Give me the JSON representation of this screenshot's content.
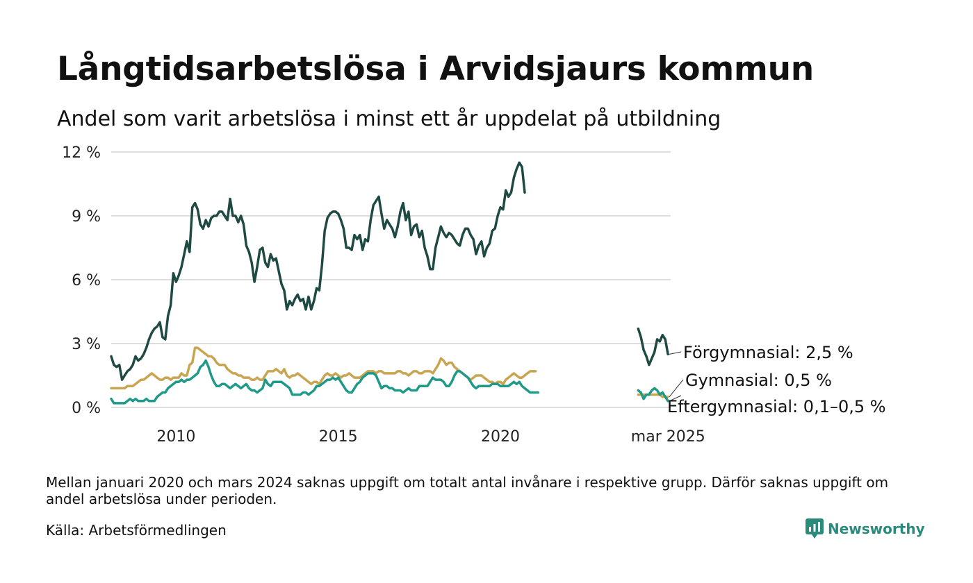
{
  "header": {
    "title": "Långtidsarbetslösa i Arvidsjaurs kommun",
    "subtitle": "Andel som varit arbetslösa i minst ett år uppdelat på utbildning"
  },
  "footer": {
    "note": "Mellan januari 2020 och mars 2024 saknas uppgift om totalt antal invånare i respektive grupp. Därför saknas uppgift om andel arbetslösa under perioden.",
    "source": "Källa: Arbetsförmedlingen",
    "brand": "Newsworthy",
    "brand_icon": "newsworthy-logo-icon",
    "brand_color": "#2a8a7c"
  },
  "chart_data": {
    "type": "line",
    "title": "Långtidsarbetslösa i Arvidsjaurs kommun",
    "subtitle": "Andel som varit arbetslösa i minst ett år uppdelat på utbildning",
    "y_unit": "%",
    "ylim": [
      0,
      12
    ],
    "yticks": [
      0,
      3,
      6,
      9,
      12
    ],
    "ytick_labels": [
      "0 %",
      "3 %",
      "6 %",
      "9 %",
      "12 %"
    ],
    "xlim": [
      2008.0,
      2025.25
    ],
    "xticks": [
      2010,
      2015,
      2020,
      2025.17
    ],
    "xtick_labels": [
      "2010",
      "2015",
      "2020",
      "mar 2025"
    ],
    "grid": true,
    "series": [
      {
        "name": "Förgymnasial",
        "label": "Förgymnasial: 2,5 %",
        "color": "#1f4a44",
        "segments": [
          {
            "x_start": 2008.0,
            "x_step": 0.08333,
            "values": [
              2.4,
              2.0,
              1.9,
              2.0,
              1.3,
              1.5,
              1.7,
              1.8,
              2.0,
              2.4,
              2.2,
              2.3,
              2.5,
              2.8,
              3.2,
              3.5,
              3.7,
              3.8,
              4.0,
              3.3,
              3.2,
              4.3,
              4.8,
              6.3,
              5.9,
              6.2,
              6.6,
              7.2,
              7.8,
              7.3,
              9.4,
              9.6,
              9.3,
              8.6,
              8.4,
              8.8,
              8.5,
              8.9,
              9.0,
              9.0,
              9.2,
              9.2,
              9.0,
              8.8,
              9.8,
              9.0,
              9.0,
              8.7,
              9.0,
              8.6,
              7.6,
              7.3,
              6.8,
              5.9,
              6.6,
              7.4,
              7.5,
              6.8,
              6.6,
              7.2,
              6.9,
              7.0,
              6.4,
              5.8,
              5.5,
              4.6,
              5.0,
              4.8,
              5.1,
              5.3,
              5.0,
              5.1,
              4.6,
              5.2,
              4.6,
              5.0,
              5.6,
              5.5,
              6.7,
              8.3,
              8.9,
              9.1,
              9.2,
              9.2,
              9.1,
              8.8,
              8.4,
              7.5,
              7.5,
              7.4,
              8.1,
              7.9,
              8.1,
              7.4,
              7.9,
              7.8,
              8.8,
              9.5,
              9.7,
              9.9,
              9.1,
              8.4,
              8.8,
              8.6,
              8.4,
              8.0,
              8.5,
              9.2,
              9.6,
              8.8,
              9.2,
              8.1,
              8.5,
              8.6,
              8.0,
              8.3,
              7.5,
              7.1,
              6.5,
              6.5,
              7.5,
              8.0,
              8.5,
              8.2,
              8.0,
              8.2,
              8.1,
              7.9,
              7.7,
              7.6,
              8.1,
              8.4,
              8.4,
              8.1,
              7.9,
              7.2,
              7.6,
              7.8,
              7.1,
              7.5,
              7.7,
              8.3,
              8.4,
              9.0,
              9.4,
              9.3,
              10.2,
              9.9,
              10.1,
              10.8,
              11.2,
              11.5,
              11.3,
              10.1
            ]
          },
          {
            "x_start": 2024.25,
            "x_step": 0.08333,
            "values": [
              3.7,
              3.3,
              2.7,
              2.4,
              2.0,
              2.3,
              2.6,
              3.2,
              3.1,
              3.4,
              3.2,
              2.5
            ]
          }
        ]
      },
      {
        "name": "Gymnasial",
        "label": "Gymnasial: 0,5 %",
        "color": "#c9a552",
        "segments": [
          {
            "x_start": 2008.0,
            "x_step": 0.08333,
            "values": [
              0.9,
              0.9,
              0.9,
              0.9,
              0.9,
              0.9,
              1.0,
              1.0,
              1.0,
              1.1,
              1.2,
              1.3,
              1.3,
              1.4,
              1.5,
              1.6,
              1.5,
              1.4,
              1.3,
              1.3,
              1.4,
              1.4,
              1.3,
              1.4,
              1.4,
              1.4,
              1.6,
              1.5,
              1.5,
              2.0,
              2.1,
              2.8,
              2.8,
              2.7,
              2.6,
              2.5,
              2.4,
              2.4,
              2.3,
              2.1,
              2.0,
              2.0,
              2.0,
              1.8,
              1.7,
              1.6,
              1.6,
              1.5,
              1.5,
              1.4,
              1.4,
              1.4,
              1.3,
              1.3,
              1.4,
              1.3,
              1.3,
              1.5,
              1.7,
              1.7,
              1.7,
              1.8,
              1.7,
              1.6,
              1.8,
              1.5,
              1.4,
              1.5,
              1.5,
              1.6,
              1.5,
              1.4,
              1.3,
              1.2,
              1.1,
              1.2,
              1.2,
              1.1,
              1.3,
              1.5,
              1.6,
              1.5,
              1.5,
              1.6,
              1.5,
              1.4,
              1.5,
              1.5,
              1.6,
              1.5,
              1.4,
              1.4,
              1.4,
              1.5,
              1.6,
              1.7,
              1.7,
              1.7,
              1.6,
              1.7,
              1.7,
              1.6,
              1.6,
              1.6,
              1.6,
              1.6,
              1.7,
              1.7,
              1.6,
              1.6,
              1.5,
              1.6,
              1.7,
              1.7,
              1.6,
              1.6,
              1.7,
              1.7,
              1.7,
              1.6,
              1.8,
              2.0,
              2.3,
              2.2,
              2.0,
              2.1,
              2.1,
              1.9,
              1.8,
              1.7,
              1.6,
              1.5,
              1.4,
              1.3,
              1.4,
              1.5,
              1.5,
              1.5,
              1.4,
              1.3,
              1.2,
              1.2,
              1.1,
              1.2,
              1.2,
              1.1,
              1.3,
              1.4,
              1.5,
              1.6,
              1.5,
              1.4,
              1.4,
              1.5,
              1.6,
              1.7,
              1.7,
              1.7
            ]
          },
          {
            "x_start": 2024.25,
            "x_step": 0.08333,
            "values": [
              0.6,
              0.6,
              0.6,
              0.6,
              0.6,
              0.6,
              0.6,
              0.6,
              0.6,
              0.5,
              0.5,
              0.5
            ]
          }
        ]
      },
      {
        "name": "Eftergymnasial",
        "label": "Eftergymnasial: 0,1–0,5 %",
        "color": "#1f9988",
        "segments": [
          {
            "x_start": 2008.0,
            "x_step": 0.08333,
            "values": [
              0.4,
              0.2,
              0.2,
              0.2,
              0.2,
              0.2,
              0.3,
              0.4,
              0.3,
              0.4,
              0.3,
              0.3,
              0.3,
              0.4,
              0.3,
              0.3,
              0.3,
              0.5,
              0.6,
              0.7,
              0.7,
              0.9,
              1.0,
              1.1,
              1.2,
              1.2,
              1.3,
              1.2,
              1.3,
              1.3,
              1.4,
              1.5,
              1.6,
              1.9,
              2.0,
              2.2,
              1.9,
              1.5,
              1.2,
              1.0,
              1.0,
              1.1,
              1.1,
              1.0,
              0.9,
              1.0,
              1.1,
              1.0,
              0.9,
              1.0,
              1.1,
              0.9,
              0.8,
              0.8,
              0.7,
              0.8,
              0.9,
              1.3,
              1.1,
              1.0,
              1.2,
              1.2,
              1.2,
              1.2,
              1.1,
              1.0,
              0.9,
              0.6,
              0.6,
              0.6,
              0.6,
              0.7,
              0.7,
              0.6,
              0.7,
              0.8,
              1.0,
              1.0,
              1.1,
              1.2,
              1.3,
              1.3,
              1.4,
              1.3,
              1.4,
              1.2,
              1.0,
              0.8,
              0.7,
              0.7,
              0.9,
              1.1,
              1.2,
              1.4,
              1.5,
              1.6,
              1.6,
              1.6,
              1.5,
              1.2,
              0.9,
              1.0,
              1.0,
              0.9,
              0.9,
              0.8,
              0.8,
              0.8,
              0.7,
              0.8,
              0.9,
              0.8,
              0.8,
              0.8,
              1.0,
              1.0,
              1.0,
              1.0,
              1.2,
              1.4,
              1.3,
              1.3,
              1.3,
              1.2,
              1.0,
              1.0,
              1.2,
              1.5,
              1.7,
              1.7,
              1.6,
              1.5,
              1.4,
              1.2,
              1.0,
              0.9,
              1.0,
              1.0,
              1.0,
              1.0,
              1.0,
              1.1,
              1.1,
              1.1,
              1.0,
              1.0,
              1.0,
              1.0,
              1.1,
              1.2,
              1.1,
              1.2,
              1.0,
              0.9,
              0.8,
              0.7,
              0.7,
              0.7,
              0.7
            ]
          },
          {
            "x_start": 2024.25,
            "x_step": 0.08333,
            "values": [
              0.8,
              0.7,
              0.4,
              0.6,
              0.6,
              0.8,
              0.9,
              0.8,
              0.6,
              0.7,
              0.5,
              0.3
            ]
          }
        ]
      }
    ]
  }
}
